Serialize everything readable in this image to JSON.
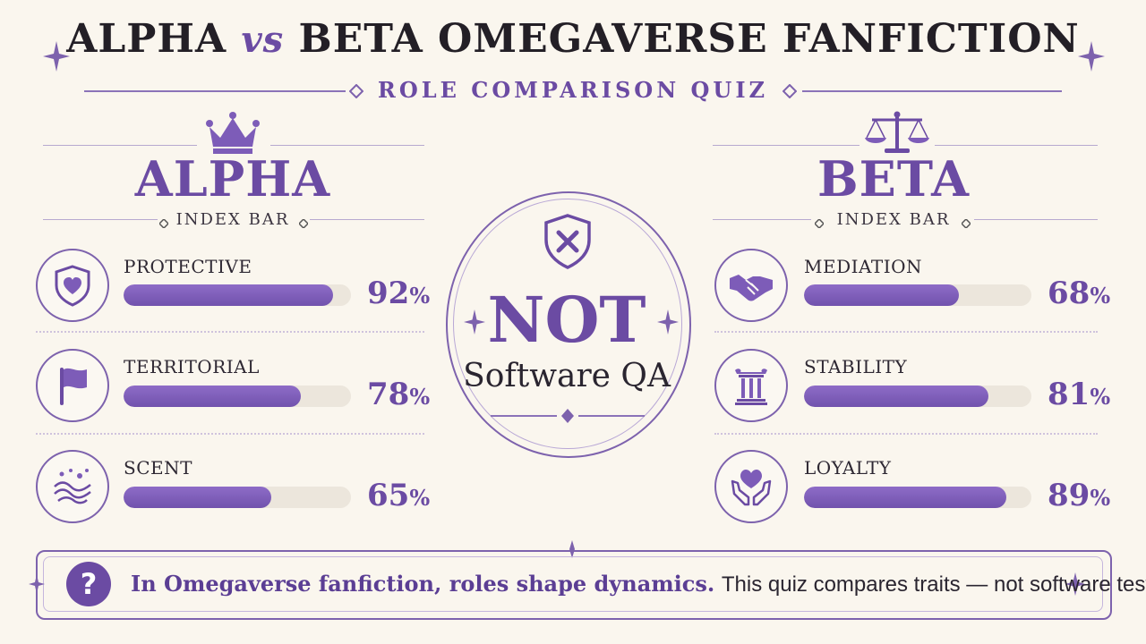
{
  "header": {
    "title_part1": "ALPHA",
    "title_vs": "vs",
    "title_part2": "BETA OMEGAVERSE FANFICTION",
    "subtitle": "ROLE COMPARISON QUIZ"
  },
  "alpha": {
    "title": "ALPHA",
    "index_label": "INDEX BAR",
    "icon": "crown-icon",
    "traits": [
      {
        "label": "PROTECTIVE",
        "value": 92,
        "pct_text": "92",
        "icon": "shield-heart-icon"
      },
      {
        "label": "TERRITORIAL",
        "value": 78,
        "pct_text": "78",
        "icon": "flag-icon"
      },
      {
        "label": "SCENT",
        "value": 65,
        "pct_text": "65",
        "icon": "scent-waves-icon"
      }
    ]
  },
  "beta": {
    "title": "BETA",
    "index_label": "INDEX BAR",
    "icon": "scales-icon",
    "traits": [
      {
        "label": "MEDIATION",
        "value": 68,
        "pct_text": "68",
        "icon": "handshake-icon"
      },
      {
        "label": "STABILITY",
        "value": 81,
        "pct_text": "81",
        "icon": "pillar-icon"
      },
      {
        "label": "LOYALTY",
        "value": 89,
        "pct_text": "89",
        "icon": "hands-heart-icon"
      }
    ]
  },
  "center": {
    "icon": "shield-x-icon",
    "main": "NOT",
    "sub": "Software QA"
  },
  "footer": {
    "icon_glyph": "?",
    "strong_text": "In Omegaverse fanfiction, roles shape dynamics.",
    "rest_text": "This quiz compares traits — not software testing."
  },
  "percent_symbol": "%",
  "colors": {
    "accent": "#6b4ba3",
    "bar_fill": "#7d5cb8",
    "bar_track": "#ece6dc",
    "background": "#faf6ee"
  }
}
